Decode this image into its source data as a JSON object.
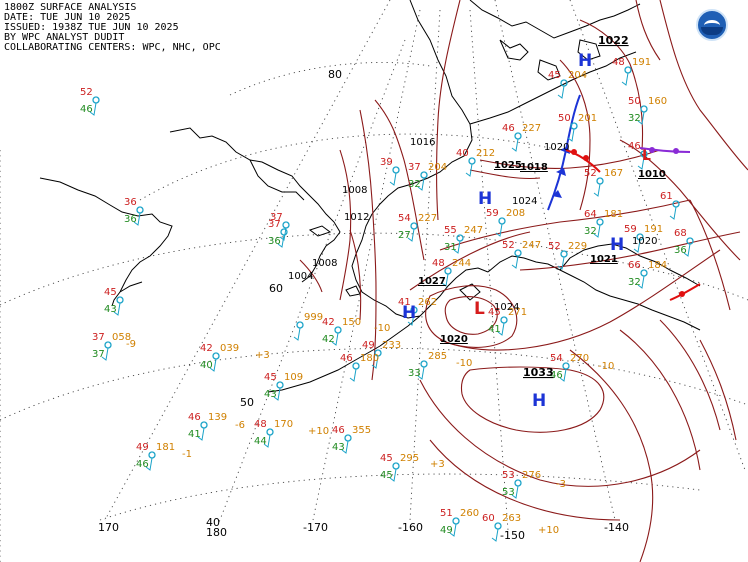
{
  "header": {
    "line1": "1800Z SURFACE ANALYSIS",
    "line2": "DATE: TUE JUN 10 2025",
    "line3": "ISSUED: 1938Z TUE JUN 10 2025",
    "line4": "BY WPC ANALYST DUDIT",
    "line5": "COLLABORATING CENTERS: WPC, NHC, OPC"
  },
  "logo_icon": "noaa-logo-icon",
  "grid_labels": {
    "lat80": "80",
    "lat60": "60",
    "lat40": "40",
    "lon170w": "170",
    "lon180": "180",
    "lon170e": "-170",
    "lon160": "-160",
    "lon150": "-150",
    "lon140": "-140"
  },
  "pressure_centers": [
    {
      "type": "H",
      "value": "1022"
    },
    {
      "type": "H",
      "value": ""
    },
    {
      "type": "H",
      "value": ""
    },
    {
      "type": "L",
      "value": "1024"
    },
    {
      "type": "H",
      "value": "1033"
    },
    {
      "type": "H",
      "value": ""
    },
    {
      "type": "L",
      "value": ""
    }
  ],
  "isobar_labels": [
    "1016",
    "1025",
    "1018",
    "1024",
    "1020",
    "1010",
    "1021",
    "1027",
    "1020",
    "1033",
    "1020",
    "1008",
    "1004",
    "1012",
    "1008"
  ],
  "station_models": [
    {
      "t": "52",
      "d": "46",
      "p": ""
    },
    {
      "t": "36",
      "d": "36",
      "p": ""
    },
    {
      "t": "45",
      "d": "43",
      "p": ""
    },
    {
      "t": "37",
      "d": "37",
      "p": "058"
    },
    {
      "t": "42",
      "d": "40",
      "p": "039"
    },
    {
      "t": "45",
      "d": "43",
      "p": "109"
    },
    {
      "t": "46",
      "d": "41",
      "p": "139"
    },
    {
      "t": "48",
      "d": "44",
      "p": "170"
    },
    {
      "t": "49",
      "d": "46",
      "p": "181"
    },
    {
      "t": "46",
      "d": "43",
      "p": "355"
    },
    {
      "t": "45",
      "d": "45",
      "p": "295"
    },
    {
      "t": "51",
      "d": "49",
      "p": "260"
    },
    {
      "t": "60",
      "d": "",
      "p": "263"
    },
    {
      "t": "53",
      "d": "53",
      "p": "276"
    },
    {
      "t": "54",
      "d": "46",
      "p": "270"
    },
    {
      "t": "45",
      "d": "41",
      "p": "271"
    },
    {
      "t": "49",
      "d": "",
      "p": "233"
    },
    {
      "t": "",
      "d": "33",
      "p": "285"
    },
    {
      "t": "41",
      "d": "",
      "p": "262"
    },
    {
      "t": "42",
      "d": "42",
      "p": "150"
    },
    {
      "t": "46",
      "d": "",
      "p": "180"
    },
    {
      "t": "",
      "d": "",
      "p": "999"
    },
    {
      "t": "48",
      "d": "",
      "p": "244"
    },
    {
      "t": "55",
      "d": "31",
      "p": "247"
    },
    {
      "t": "52",
      "d": "",
      "p": "247"
    },
    {
      "t": "52",
      "d": "",
      "p": "229"
    },
    {
      "t": "54",
      "d": "27",
      "p": "227"
    },
    {
      "t": "59",
      "d": "",
      "p": "208"
    },
    {
      "t": "64",
      "d": "32",
      "p": "181"
    },
    {
      "t": "59",
      "d": "",
      "p": "191"
    },
    {
      "t": "66",
      "d": "32",
      "p": "184"
    },
    {
      "t": "68",
      "d": "36",
      "p": ""
    },
    {
      "t": "61",
      "d": "",
      "p": ""
    },
    {
      "t": "52",
      "d": "",
      "p": "167"
    },
    {
      "t": "40",
      "d": "",
      "p": "212"
    },
    {
      "t": "37",
      "d": "32",
      "p": "204"
    },
    {
      "t": "46",
      "d": "",
      "p": "227"
    },
    {
      "t": "45",
      "d": "",
      "p": "204"
    },
    {
      "t": "50",
      "d": "",
      "p": "201"
    },
    {
      "t": "48",
      "d": "",
      "p": "191"
    },
    {
      "t": "50",
      "d": "32",
      "p": "160"
    },
    {
      "t": "46",
      "d": "",
      "p": ""
    },
    {
      "t": "39",
      "d": "",
      "p": ""
    },
    {
      "t": "37",
      "d": "36",
      "p": ""
    },
    {
      "t": "37",
      "d": "",
      "p": ""
    }
  ],
  "tendency_labels": [
    "-9",
    "+3",
    "-6",
    "+10",
    "-1",
    "+3",
    "-3",
    "-10",
    "+10",
    "-10",
    "-10"
  ],
  "colors": {
    "isobar": "#8b1a1a",
    "temperature": "#cc1f1f",
    "dewpoint": "#1f8a1f",
    "pressure": "#d08000",
    "station": "#1aa3c8",
    "high": "#1c34d6",
    "low": "#d61c1c",
    "front_warm": "#e01010",
    "front_cold": "#1c34d6",
    "occluded": "#8a2bd6",
    "coast": "#000000"
  }
}
